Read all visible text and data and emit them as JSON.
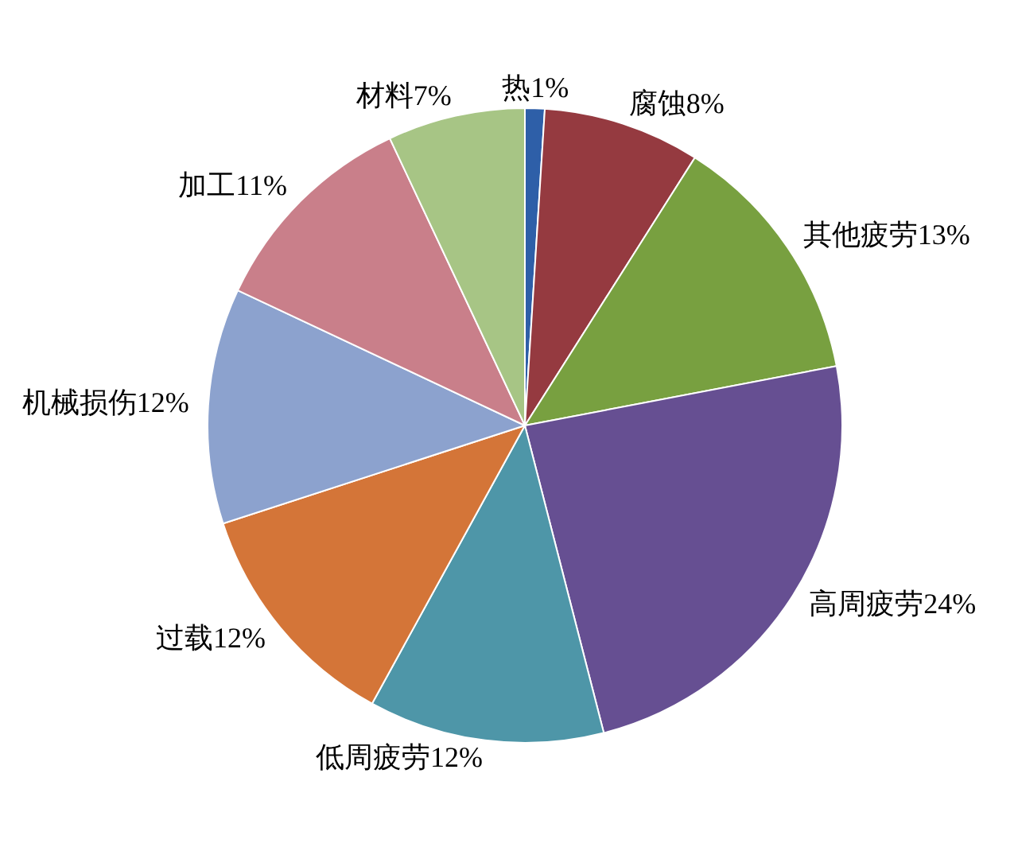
{
  "chart_data": {
    "type": "pie",
    "categories": [
      "热",
      "腐蚀",
      "其他疲劳",
      "高周疲劳",
      "低周疲劳",
      "过载",
      "机械损伤",
      "加工",
      "材料"
    ],
    "values": [
      1,
      8,
      13,
      24,
      12,
      12,
      12,
      11,
      7
    ],
    "value_labels": [
      "1%",
      "8%",
      "13%",
      "24%",
      "12%",
      "12%",
      "12%",
      "11%",
      "7%"
    ],
    "colors": [
      "#2e5fa8",
      "#953a40",
      "#78a040",
      "#664f92",
      "#4e96a8",
      "#d47538",
      "#8ca2ce",
      "#c97f8a",
      "#a7c585"
    ],
    "legend": false
  }
}
